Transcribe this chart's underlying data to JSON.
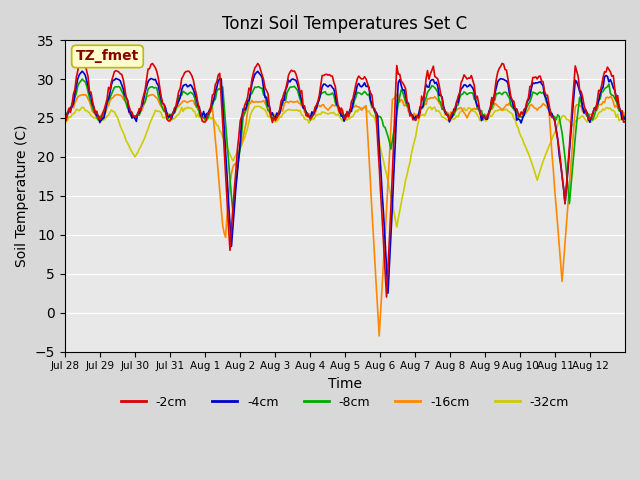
{
  "title": "Tonzi Soil Temperatures Set C",
  "xlabel": "Time",
  "ylabel": "Soil Temperature (C)",
  "ylim": [
    -5,
    35
  ],
  "yticks": [
    -5,
    0,
    5,
    10,
    15,
    20,
    25,
    30,
    35
  ],
  "legend_label": "TZ_fmet",
  "legend_box_color": "#ffffcc",
  "legend_box_border": "#bbbb00",
  "legend_text_color": "#880000",
  "series_colors": {
    "-2cm": "#dd0000",
    "-4cm": "#0000cc",
    "-8cm": "#00aa00",
    "-16cm": "#ff8800",
    "-32cm": "#cccc00"
  },
  "series_linewidth": 1.2,
  "n_days": 16,
  "tick_labels": [
    "Jul 28",
    "Jul 29",
    "Jul 30",
    "Jul 31",
    "Aug 1",
    "Aug 2",
    "Aug 3",
    "Aug 4",
    "Aug 5",
    "Aug 6",
    "Aug 7",
    "Aug 8",
    "Aug 9",
    "Aug 10",
    "Aug 11",
    "Aug 12"
  ]
}
